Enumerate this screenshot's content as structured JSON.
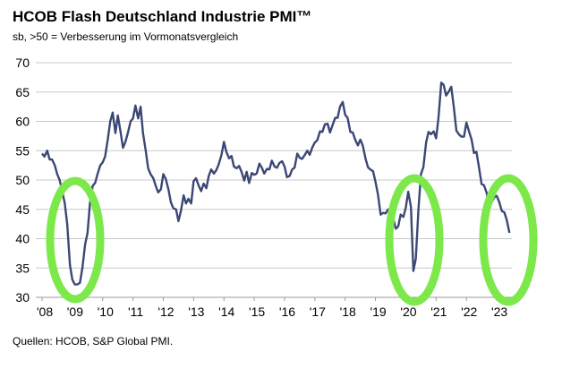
{
  "chart_data": {
    "type": "line",
    "title": "HCOB Flash Deutschland Industrie PMI™",
    "subtitle": "sb, >50 = Verbesserung im Vormonatsvergleich",
    "source": "Quellen: HCOB, S&P Global PMI.",
    "color": "#3b4775",
    "grid": true,
    "x": [
      2008.0,
      2008.08,
      2008.17,
      2008.25,
      2008.33,
      2008.42,
      2008.5,
      2008.58,
      2008.67,
      2008.75,
      2008.83,
      2008.92,
      2009.0,
      2009.08,
      2009.17,
      2009.25,
      2009.33,
      2009.42,
      2009.5,
      2009.58,
      2009.67,
      2009.75,
      2009.83,
      2009.92,
      2010.0,
      2010.08,
      2010.17,
      2010.25,
      2010.33,
      2010.42,
      2010.5,
      2010.58,
      2010.67,
      2010.75,
      2010.83,
      2010.92,
      2011.0,
      2011.08,
      2011.17,
      2011.25,
      2011.33,
      2011.42,
      2011.5,
      2011.58,
      2011.67,
      2011.75,
      2011.83,
      2011.92,
      2012.0,
      2012.08,
      2012.17,
      2012.25,
      2012.33,
      2012.42,
      2012.5,
      2012.58,
      2012.67,
      2012.75,
      2012.83,
      2012.92,
      2013.0,
      2013.08,
      2013.17,
      2013.25,
      2013.33,
      2013.42,
      2013.5,
      2013.58,
      2013.67,
      2013.75,
      2013.83,
      2013.92,
      2014.0,
      2014.08,
      2014.17,
      2014.25,
      2014.33,
      2014.42,
      2014.5,
      2014.58,
      2014.67,
      2014.75,
      2014.83,
      2014.92,
      2015.0,
      2015.08,
      2015.17,
      2015.25,
      2015.33,
      2015.42,
      2015.5,
      2015.58,
      2015.67,
      2015.75,
      2015.83,
      2015.92,
      2016.0,
      2016.08,
      2016.17,
      2016.25,
      2016.33,
      2016.42,
      2016.5,
      2016.58,
      2016.67,
      2016.75,
      2016.83,
      2016.92,
      2017.0,
      2017.08,
      2017.17,
      2017.25,
      2017.33,
      2017.42,
      2017.5,
      2017.58,
      2017.67,
      2017.75,
      2017.83,
      2017.92,
      2018.0,
      2018.08,
      2018.17,
      2018.25,
      2018.33,
      2018.42,
      2018.5,
      2018.58,
      2018.67,
      2018.75,
      2018.83,
      2018.92,
      2019.0,
      2019.08,
      2019.17,
      2019.25,
      2019.33,
      2019.42,
      2019.5,
      2019.58,
      2019.67,
      2019.75,
      2019.83,
      2019.92,
      2020.0,
      2020.08,
      2020.17,
      2020.25,
      2020.33,
      2020.42,
      2020.5,
      2020.58,
      2020.67,
      2020.75,
      2020.83,
      2020.92,
      2021.0,
      2021.08,
      2021.17,
      2021.25,
      2021.33,
      2021.42,
      2021.5,
      2021.58,
      2021.67,
      2021.75,
      2021.83,
      2021.92,
      2022.0,
      2022.08,
      2022.17,
      2022.25,
      2022.33,
      2022.42,
      2022.5,
      2022.58,
      2022.67,
      2022.75,
      2022.83,
      2022.92,
      2023.0,
      2023.08,
      2023.17,
      2023.25,
      2023.33,
      2023.42
    ],
    "values": [
      54.5,
      54,
      55,
      53.5,
      53.5,
      52.5,
      51,
      50,
      48,
      46,
      42.5,
      35.5,
      33,
      32.2,
      32.2,
      32.5,
      35,
      39,
      41,
      46,
      49,
      49.5,
      51,
      52.5,
      53,
      54,
      57,
      60,
      61.5,
      58,
      61,
      58.5,
      55.5,
      56.5,
      58,
      60,
      60.5,
      62.7,
      60.5,
      62.5,
      58,
      55,
      52,
      51,
      50.3,
      49,
      47.9,
      48.4,
      51,
      50.2,
      48.4,
      46.2,
      45.2,
      45,
      43,
      44.7,
      47.4,
      46,
      46.8,
      46,
      49.8,
      50.3,
      49,
      48.1,
      49.4,
      48.6,
      50.7,
      51.8,
      51.1,
      51.7,
      52.7,
      54.3,
      56.5,
      54.8,
      53.7,
      54.1,
      52.3,
      52,
      52.4,
      51.4,
      49.9,
      51.4,
      49.5,
      51.2,
      50.9,
      51.1,
      52.8,
      52.1,
      51.1,
      51.9,
      51.8,
      53.3,
      52.3,
      52.1,
      52.9,
      53.2,
      52.3,
      50.5,
      50.7,
      51.8,
      52.1,
      54.5,
      53.8,
      53.6,
      54.3,
      55,
      54.3,
      55.6,
      56.4,
      56.8,
      58.3,
      58.2,
      59.5,
      59.6,
      58.1,
      59.3,
      60.6,
      60.6,
      62.5,
      63.3,
      61.1,
      60.6,
      58.2,
      58.1,
      56.9,
      55.9,
      56.9,
      55.9,
      53.7,
      52.2,
      51.8,
      51.5,
      49.7,
      47.6,
      44.1,
      44.4,
      44.3,
      45,
      43.2,
      43.5,
      41.7,
      42.1,
      44.1,
      43.7,
      45.3,
      48,
      45.4,
      34.5,
      36.6,
      45.2,
      51,
      52.2,
      56.4,
      58.2,
      57.8,
      58.3,
      57.1,
      60.7,
      66.6,
      66.2,
      64.4,
      65.1,
      65.9,
      62.6,
      58.4,
      57.8,
      57.4,
      57.4,
      59.8,
      58.4,
      56.9,
      54.6,
      54.8,
      52,
      49.3,
      49.1,
      47.8,
      45.1,
      46.2,
      47.1,
      47.3,
      46.3,
      44.7,
      44.5,
      43.2,
      41
    ],
    "xlim": [
      2008,
      2023.5
    ],
    "xticks": [
      {
        "value": 2008,
        "label": "'08"
      },
      {
        "value": 2009,
        "label": "'09"
      },
      {
        "value": 2010,
        "label": "'10"
      },
      {
        "value": 2011,
        "label": "'11"
      },
      {
        "value": 2012,
        "label": "'12"
      },
      {
        "value": 2013,
        "label": "'13"
      },
      {
        "value": 2014,
        "label": "'14"
      },
      {
        "value": 2015,
        "label": "'15"
      },
      {
        "value": 2016,
        "label": "'16"
      },
      {
        "value": 2017,
        "label": "'17"
      },
      {
        "value": 2018,
        "label": "'18"
      },
      {
        "value": 2019,
        "label": "'19"
      },
      {
        "value": 2020,
        "label": "'20"
      },
      {
        "value": 2021,
        "label": "'21"
      },
      {
        "value": 2022,
        "label": "'22"
      },
      {
        "value": 2023,
        "label": "'23"
      }
    ],
    "ylim": [
      30,
      70
    ],
    "yticks": [
      30,
      35,
      40,
      45,
      50,
      55,
      60,
      65,
      70
    ]
  }
}
